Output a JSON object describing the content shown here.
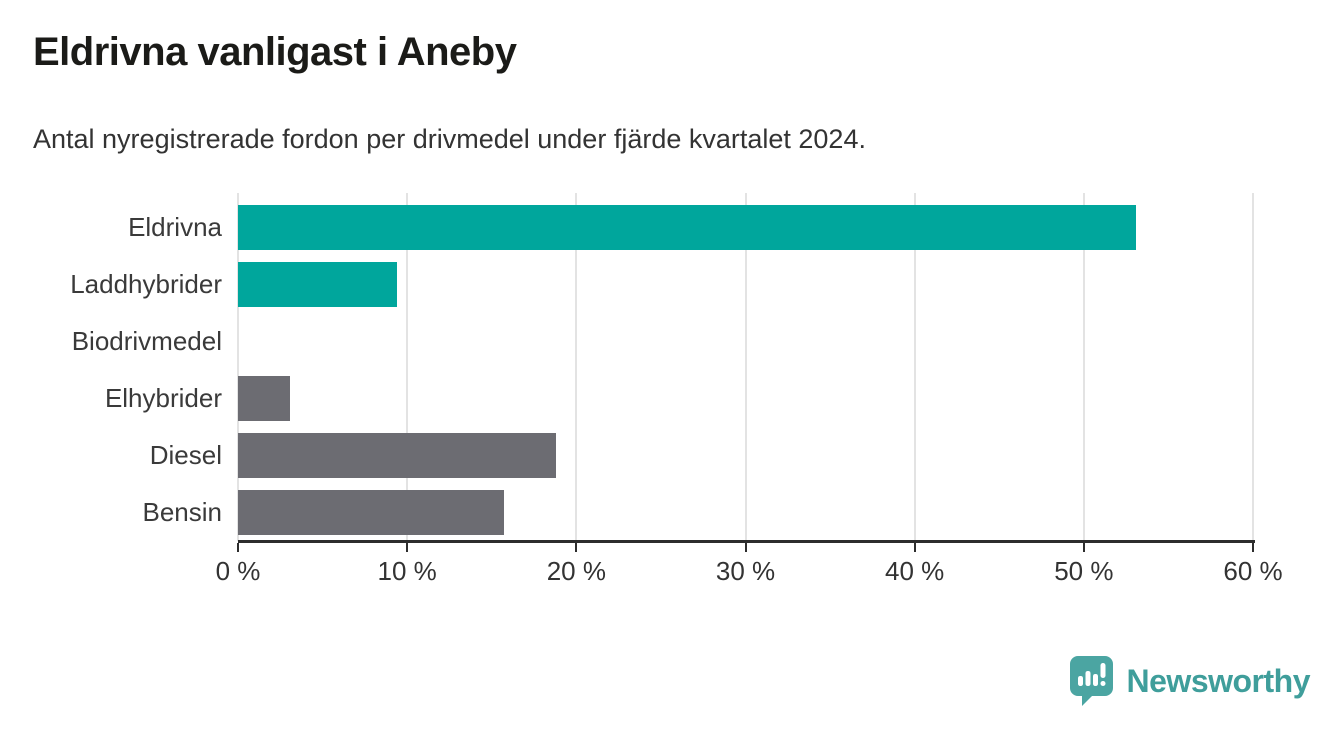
{
  "header": {
    "title": "Eldrivna vanligast i Aneby",
    "subtitle": "Antal nyregistrerade fordon per drivmedel under fjärde kvartalet 2024."
  },
  "chart_data": {
    "type": "bar",
    "orientation": "horizontal",
    "title": "Eldrivna vanligast i Aneby",
    "subtitle": "Antal nyregistrerade fordon per drivmedel under fjärde kvartalet 2024.",
    "categories": [
      "Eldrivna",
      "Laddhybrider",
      "Biodrivmedel",
      "Elhybrider",
      "Diesel",
      "Bensin"
    ],
    "values": [
      53.1,
      9.4,
      0,
      3.1,
      18.8,
      15.7
    ],
    "unit": "%",
    "bar_colors": [
      "#00a69c",
      "#00a69c",
      "#00a69c",
      "#6c6c72",
      "#6c6c72",
      "#6c6c72"
    ],
    "xlim": [
      0,
      60
    ],
    "x_ticks": [
      0,
      10,
      20,
      30,
      40,
      50,
      60
    ],
    "x_tick_labels": [
      "0 %",
      "10 %",
      "20 %",
      "30 %",
      "40 %",
      "50 %",
      "60 %"
    ],
    "grid": "vertical-on",
    "legend": "none",
    "xlabel": "",
    "ylabel": ""
  },
  "colors": {
    "accent_teal": "#00a69c",
    "neutral_gray": "#6c6c72",
    "brand_teal": "#3f9e9b",
    "grid_gray": "#e3e3e3",
    "axis_dark": "#2d2d2d"
  },
  "footer": {
    "brand": "Newsworthy",
    "logo_icon": "speech-bubble-bar-chart-icon"
  }
}
